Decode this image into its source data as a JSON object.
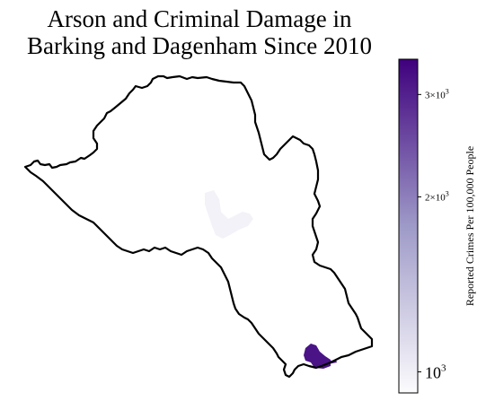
{
  "title": {
    "line1": "Arson and Criminal Damage in",
    "line2": "Barking and Dagenham Since 2010"
  },
  "colorbar": {
    "label": "Reported Crimes Per 100,000 People",
    "scale": "log",
    "colormap": "Purples",
    "color_low": "#fcfbfd",
    "color_mid": "#9e9ac8",
    "color_high": "#3f007d",
    "range": [
      920,
      3450
    ],
    "ticks": [
      {
        "value": 1000,
        "label": "10",
        "exp": "3",
        "prefix": ""
      },
      {
        "value": 2000,
        "label": "2×10",
        "exp": "3",
        "prefix": ""
      },
      {
        "value": 3000,
        "label": "3×10",
        "exp": "3",
        "prefix": ""
      }
    ]
  },
  "map": {
    "borough": "Barking and Dagenham",
    "outline_color": "#000000",
    "regions": [
      {
        "name": "central-area",
        "value": 960,
        "color": "#f3f2f8"
      },
      {
        "name": "southeast-area",
        "value": 3400,
        "color": "#4a1486"
      }
    ]
  }
}
